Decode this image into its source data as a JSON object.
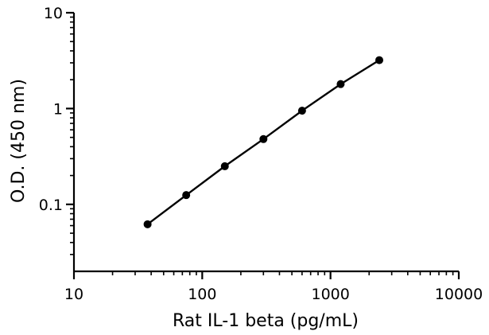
{
  "chart_data": {
    "type": "line",
    "xlabel": "Rat IL-1 beta (pg/mL)",
    "ylabel": "O.D. (450 nm)",
    "x_scale": "log",
    "y_scale": "log",
    "xlim": [
      10,
      10000
    ],
    "ylim": [
      0.02,
      10
    ],
    "x_ticks": [
      {
        "value": 10,
        "label": "10"
      },
      {
        "value": 100,
        "label": "100"
      },
      {
        "value": 1000,
        "label": "1000"
      },
      {
        "value": 10000,
        "label": "10000"
      }
    ],
    "y_ticks": [
      {
        "value": 0.1,
        "label": "0.1"
      },
      {
        "value": 1,
        "label": "1"
      },
      {
        "value": 10,
        "label": "10"
      }
    ],
    "grid": false,
    "series": [
      {
        "x": [
          37.5,
          75,
          150,
          300,
          600,
          1200,
          2400
        ],
        "y": [
          0.062,
          0.125,
          0.25,
          0.48,
          0.95,
          1.8,
          3.2
        ]
      }
    ],
    "colors": {
      "line": "#000000",
      "marker": "#000000",
      "axis": "#000000"
    }
  }
}
